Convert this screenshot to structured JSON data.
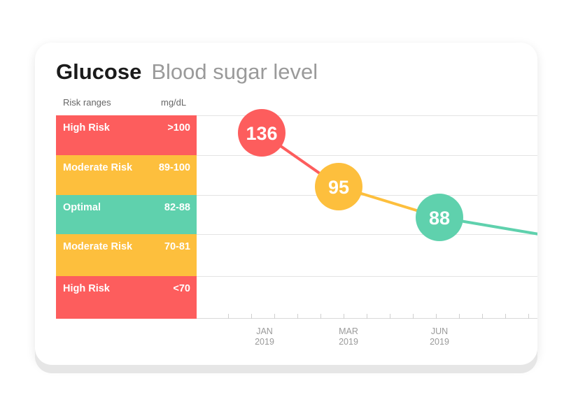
{
  "title": "Glucose",
  "subtitle": "Blood sugar level",
  "table_header": {
    "left": "Risk ranges",
    "right": "mg/dL"
  },
  "risk_bands": [
    {
      "label": "High Risk",
      "range": ">100",
      "color": "#fd5d5d"
    },
    {
      "label": "Moderate Risk",
      "range": "89-100",
      "color": "#fdbf3d"
    },
    {
      "label": "Optimal",
      "range": "82-88",
      "color": "#5fd1ad"
    },
    {
      "label": "Moderate Risk",
      "range": "70-81",
      "color": "#fdbf3d"
    },
    {
      "label": "High Risk",
      "range": "<70",
      "color": "#fd5d5d"
    }
  ],
  "chart_data": {
    "type": "line",
    "title": "Glucose",
    "subtitle": "Blood sugar level",
    "ylabel": "mg/dL",
    "x_ticks": [
      {
        "month": "JAN",
        "year": "2019"
      },
      {
        "month": "MAR",
        "year": "2019"
      },
      {
        "month": "JUN",
        "year": "2019"
      }
    ],
    "points": [
      {
        "label": "136",
        "value": 136,
        "band": "High Risk",
        "color": "#fd5d5d"
      },
      {
        "label": "95",
        "value": 95,
        "band": "Moderate Risk",
        "color": "#fdbf3d"
      },
      {
        "label": "88",
        "value": 88,
        "band": "Optimal",
        "color": "#5fd1ad"
      }
    ],
    "grid": true
  }
}
